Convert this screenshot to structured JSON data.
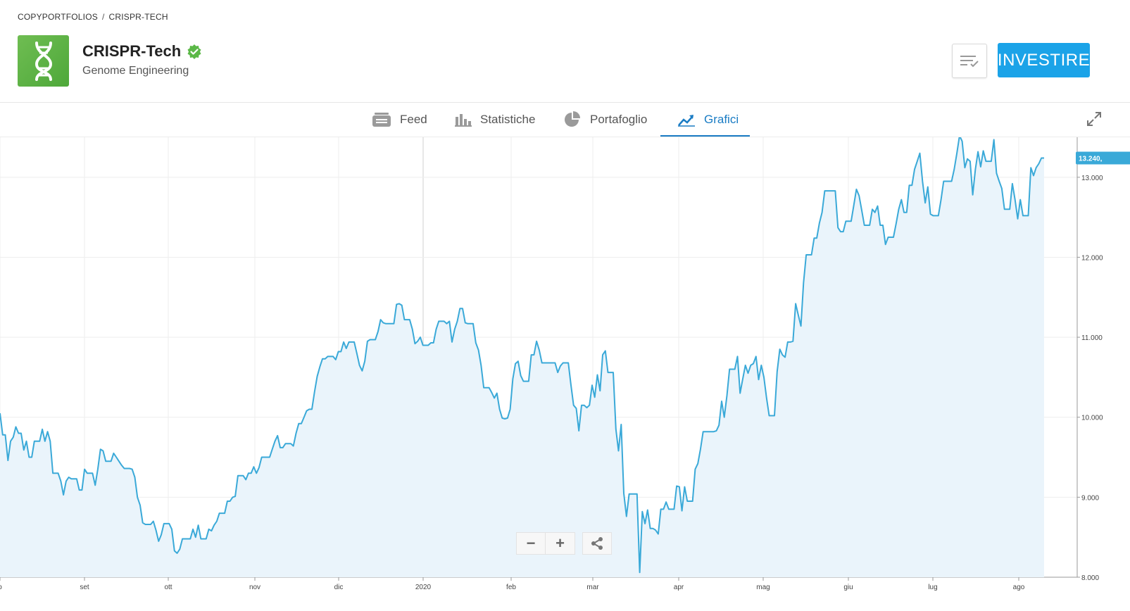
{
  "breadcrumb": {
    "root": "COPYPORTFOLIOS",
    "separator": "/",
    "current": "CRISPR-TECH"
  },
  "portfolio": {
    "name": "CRISPR-Tech",
    "subtitle": "Genome Engineering",
    "logo_icon": "dna-icon",
    "verified_icon": "verified-check-icon"
  },
  "actions": {
    "watchlist_icon": "watchlist-icon",
    "invest_label": "INVESTIRE"
  },
  "tabs": [
    {
      "label": "Feed",
      "icon": "feed-icon",
      "active": false
    },
    {
      "label": "Statistiche",
      "icon": "bar-chart-icon",
      "active": false
    },
    {
      "label": "Portafoglio",
      "icon": "pie-chart-icon",
      "active": false
    },
    {
      "label": "Grafici",
      "icon": "trend-icon",
      "active": true
    }
  ],
  "colors": {
    "accent": "#1ba3e8",
    "tab_active": "#1a7cc4",
    "line": "#3aa9d8",
    "area": "#eaf4fb",
    "logo": "#5cb445"
  },
  "zoom": {
    "minus": "−",
    "plus": "+",
    "share_icon": "share-icon"
  },
  "chart_data": {
    "type": "area",
    "x_tick_labels": [
      "o",
      "set",
      "ott",
      "nov",
      "dic",
      "2020",
      "feb",
      "mar",
      "apr",
      "mag",
      "giu",
      "lug",
      "ago"
    ],
    "y_ticks": [
      "8.000",
      "9.000",
      "10.000",
      "11.000",
      "12.000",
      "13.000"
    ],
    "last_value_label": "13.240,",
    "ylim": [
      8000,
      13500
    ],
    "y_values": [
      10050,
      9780,
      9780,
      9460,
      9700,
      9750,
      9880,
      9800,
      9800,
      9590,
      9700,
      9500,
      9500,
      9700,
      9700,
      9700,
      9850,
      9700,
      9820,
      9700,
      9300,
      9300,
      9300,
      9200,
      9030,
      9200,
      9250,
      9230,
      9230,
      9230,
      9090,
      9090,
      9350,
      9300,
      9300,
      9300,
      9150,
      9350,
      9600,
      9580,
      9450,
      9450,
      9450,
      9550,
      9500,
      9450,
      9400,
      9360,
      9360,
      9360,
      9350,
      9250,
      9000,
      8900,
      8680,
      8660,
      8660,
      8660,
      8700,
      8590,
      8450,
      8530,
      8670,
      8670,
      8670,
      8600,
      8330,
      8300,
      8350,
      8480,
      8480,
      8480,
      8480,
      8600,
      8500,
      8650,
      8480,
      8480,
      8480,
      8600,
      8580,
      8650,
      8700,
      8800,
      8800,
      8800,
      8950,
      8950,
      9000,
      9010,
      9270,
      9270,
      9270,
      9220,
      9300,
      9300,
      9380,
      9300,
      9370,
      9500,
      9500,
      9500,
      9500,
      9600,
      9700,
      9770,
      9620,
      9620,
      9670,
      9670,
      9670,
      9640,
      9800,
      9920,
      9920,
      10000,
      10080,
      10100,
      10100,
      10320,
      10510,
      10630,
      10730,
      10730,
      10760,
      10760,
      10760,
      10720,
      10820,
      10820,
      10940,
      10860,
      10940,
      10940,
      10940,
      10800,
      10650,
      10580,
      10700,
      10950,
      10970,
      10970,
      10970,
      11070,
      11220,
      11180,
      11170,
      11170,
      11170,
      11170,
      11410,
      11420,
      11400,
      11220,
      11220,
      11220,
      11100,
      10920,
      10950,
      11000,
      10900,
      10900,
      10900,
      10930,
      10930,
      11100,
      11200,
      11200,
      11200,
      11170,
      11200,
      10940,
      11100,
      11200,
      11360,
      11360,
      11180,
      11170,
      11170,
      11170,
      10930,
      10840,
      10650,
      10370,
      10370,
      10370,
      10310,
      10240,
      10300,
      10100,
      9990,
      9980,
      9990,
      10100,
      10480,
      10670,
      10700,
      10520,
      10450,
      10450,
      10450,
      10780,
      10780,
      10950,
      10840,
      10680,
      10680,
      10680,
      10680,
      10680,
      10680,
      10560,
      10640,
      10680,
      10680,
      10680,
      10400,
      10150,
      10110,
      9830,
      10150,
      10150,
      10120,
      10150,
      10400,
      10250,
      10530,
      10330,
      10780,
      10830,
      10560,
      10560,
      10560,
      9850,
      9580,
      9910,
      9050,
      8760,
      9040,
      9040,
      9040,
      9040,
      8060,
      8820,
      8670,
      8840,
      8610,
      8610,
      8590,
      8540,
      8850,
      8850,
      8940,
      8850,
      8850,
      8850,
      9140,
      9130,
      8830,
      9130,
      8950,
      8950,
      8950,
      9350,
      9420,
      9600,
      9820,
      9820,
      9820,
      9820,
      9820,
      9830,
      9900,
      10200,
      10000,
      10270,
      10600,
      10600,
      10600,
      10760,
      10300,
      10480,
      10650,
      10550,
      10650,
      10670,
      10760,
      10470,
      10650,
      10500,
      10240,
      10020,
      10020,
      10020,
      10570,
      10850,
      10780,
      10750,
      10940,
      10940,
      10950,
      11420,
      11280,
      11140,
      11680,
      12030,
      12030,
      12030,
      12240,
      12240,
      12430,
      12560,
      12830,
      12830,
      12830,
      12830,
      12830,
      12370,
      12320,
      12320,
      12450,
      12450,
      12450,
      12650,
      12850,
      12770,
      12590,
      12400,
      12400,
      12400,
      12600,
      12560,
      12640,
      12400,
      12400,
      12160,
      12250,
      12250,
      12250,
      12420,
      12600,
      12720,
      12560,
      12560,
      12900,
      12900,
      13100,
      13200,
      13300,
      12950,
      12680,
      12880,
      12540,
      12520,
      12520,
      12520,
      12720,
      12950,
      12950,
      12950,
      12950,
      13100,
      13300,
      13520,
      13450,
      13120,
      13230,
      13200,
      12780,
      13100,
      13320,
      13130,
      13330,
      13200,
      13200,
      13200,
      13470,
      13050,
      12950,
      12860,
      12600,
      12600,
      12600,
      12920,
      12720,
      12480,
      12720,
      12520,
      12520,
      12520,
      13120,
      13020,
      13120,
      13170,
      13240,
      13240
    ]
  }
}
